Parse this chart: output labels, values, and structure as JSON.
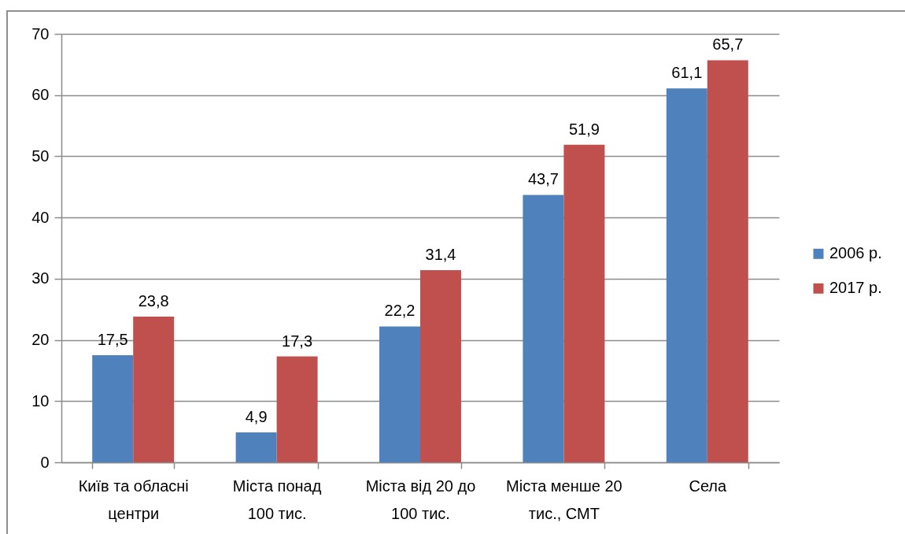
{
  "chart_data": {
    "type": "bar",
    "categories": [
      "Київ та обласні центри",
      "Міста понад 100 тис.",
      "Міста від 20 до 100 тис.",
      "Міста менше 20 тис., СМТ",
      "Села"
    ],
    "series": [
      {
        "name": "2006 р.",
        "color": "#4f81bd",
        "values": [
          17.5,
          4.9,
          22.2,
          43.7,
          61.1
        ],
        "value_labels": [
          "17,5",
          "4,9",
          "22,2",
          "43,7",
          "61,1"
        ]
      },
      {
        "name": "2017 р.",
        "color": "#c0504d",
        "values": [
          23.8,
          17.3,
          31.4,
          51.9,
          65.7
        ],
        "value_labels": [
          "23,8",
          "17,3",
          "31,4",
          "51,9",
          "65,7"
        ]
      }
    ],
    "ylim": [
      0,
      70
    ],
    "yticks": [
      0,
      10,
      20,
      30,
      40,
      50,
      60,
      70
    ],
    "grid": "y",
    "legend": "right"
  }
}
